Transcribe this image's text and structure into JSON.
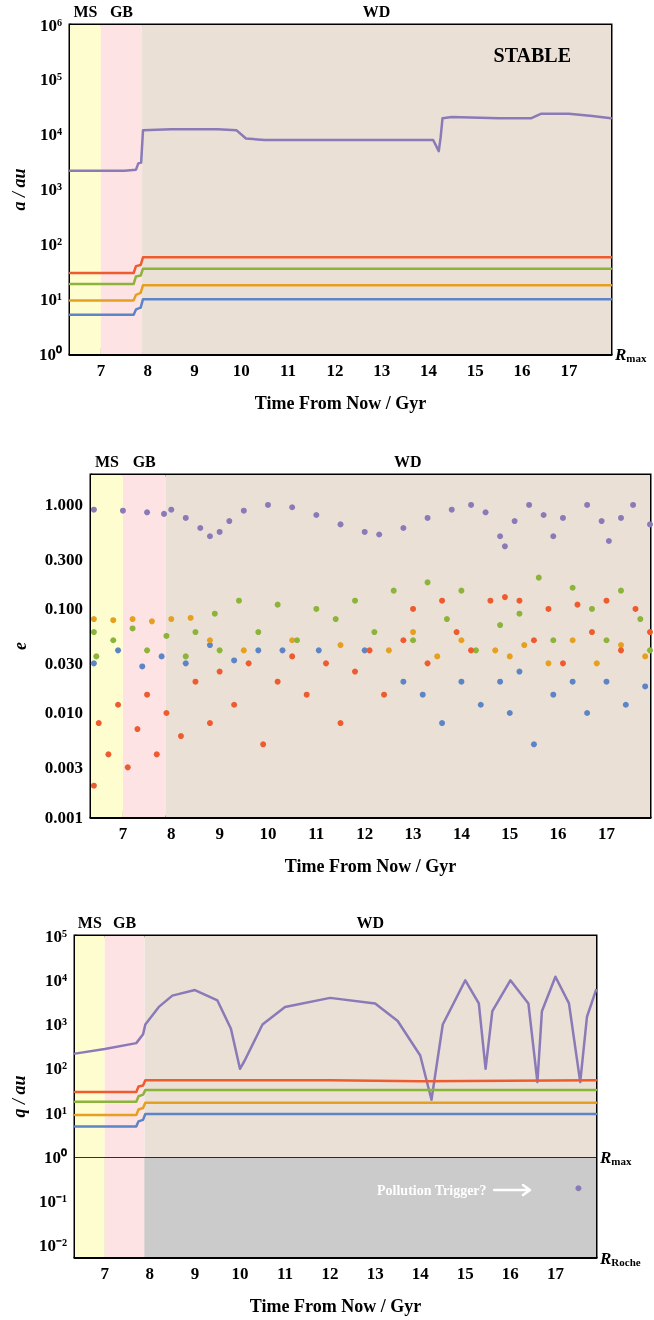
{
  "chart_data": [
    {
      "type": "line",
      "xlabel": "Time From Now / Gyr",
      "ylabel": "a / au",
      "log": "y",
      "xlim": [
        6.34,
        17.9
      ],
      "xticks": [
        7,
        8,
        9,
        10,
        11,
        12,
        13,
        14,
        15,
        16,
        17
      ],
      "ylim": [
        1,
        1000000
      ],
      "yticks": [
        {
          "value": 1,
          "label": "10⁰"
        },
        {
          "value": 10,
          "label": "10¹"
        },
        {
          "value": 100,
          "label": "10²"
        },
        {
          "value": 1000,
          "label": "10³"
        },
        {
          "value": 10000,
          "label": "10⁴"
        },
        {
          "value": 100000,
          "label": "10⁵"
        },
        {
          "value": 1000000,
          "label": "10⁶"
        }
      ],
      "annotations": [
        "STABLE",
        "R$_{max}$"
      ],
      "bands": [
        {
          "axis": "x",
          "from": 6.34,
          "to": 7.0,
          "label": "MS",
          "color": "#fefdd0"
        },
        {
          "axis": "x",
          "from": 7.0,
          "to": 7.88,
          "label": "GB",
          "color": "#fde3e3"
        },
        {
          "axis": "x",
          "from": 7.88,
          "to": 17.9,
          "label": "WD",
          "color": "#eae0d6"
        }
      ],
      "series": [
        {
          "color": "#8a7ab8",
          "x": [
            6.34,
            7.0,
            7.5,
            7.75,
            7.8,
            7.86,
            7.9,
            8.5,
            9.5,
            9.9,
            10.1,
            10.5,
            12,
            13.5,
            14.1,
            14.22,
            14.26,
            14.3,
            14.5,
            15.5,
            16.2,
            16.4,
            17,
            17.5,
            17.9
          ],
          "values": [
            2200,
            2200,
            2200,
            2300,
            3000,
            3100,
            12000,
            12500,
            12500,
            12000,
            8500,
            8000,
            8000,
            8000,
            8000,
            5000,
            9000,
            20000,
            21000,
            20000,
            20000,
            24000,
            24000,
            22000,
            20000
          ]
        },
        {
          "color": "#ee5b2f",
          "x": [
            6.34,
            7.7,
            7.75,
            7.85,
            7.9,
            17.9
          ],
          "values": [
            30,
            30,
            40,
            42,
            58,
            58
          ]
        },
        {
          "color": "#8cb43a",
          "x": [
            6.34,
            7.7,
            7.75,
            7.85,
            7.9,
            17.9
          ],
          "values": [
            19,
            19,
            26,
            27,
            36,
            36
          ]
        },
        {
          "color": "#e5a022",
          "x": [
            6.34,
            7.7,
            7.75,
            7.85,
            7.9,
            17.9
          ],
          "values": [
            9.5,
            9.5,
            12,
            13,
            18,
            18
          ]
        },
        {
          "color": "#5b85c6",
          "x": [
            6.34,
            7.7,
            7.75,
            7.85,
            7.9,
            17.9
          ],
          "values": [
            5.2,
            5.2,
            6.5,
            7,
            10,
            10
          ]
        }
      ]
    },
    {
      "type": "scatter",
      "marker": "circle",
      "xlabel": "Time From Now / Gyr",
      "ylabel": "e",
      "log": "y",
      "xlim": [
        6.34,
        17.9
      ],
      "xticks": [
        7,
        8,
        9,
        10,
        11,
        12,
        13,
        14,
        15,
        16,
        17
      ],
      "ylim": [
        0.001,
        1.94
      ],
      "yticks": [
        {
          "value": 0.001,
          "label": "0.001"
        },
        {
          "value": 0.003,
          "label": "0.003"
        },
        {
          "value": 0.01,
          "label": "0.010"
        },
        {
          "value": 0.03,
          "label": "0.030"
        },
        {
          "value": 0.1,
          "label": "0.100"
        },
        {
          "value": 0.3,
          "label": "0.300"
        },
        {
          "value": 1,
          "label": "1.000"
        }
      ],
      "bands": [
        {
          "axis": "x",
          "from": 6.34,
          "to": 7.0,
          "label": "MS",
          "color": "#fefdd0"
        },
        {
          "axis": "x",
          "from": 7.0,
          "to": 7.88,
          "label": "GB",
          "color": "#fde3e3"
        },
        {
          "axis": "x",
          "from": 7.88,
          "to": 17.9,
          "label": "WD",
          "color": "#eae0d6"
        }
      ],
      "series": [
        {
          "color": "#5b85c6",
          "x": [
            6.4,
            6.9,
            7.4,
            7.8,
            8.3,
            8.8,
            9.3,
            9.8,
            10.3,
            11.05,
            12.0,
            12.8,
            13.2,
            13.6,
            14.0,
            14.4,
            14.8,
            15.0,
            15.2,
            15.5,
            15.9,
            16.3,
            16.6,
            17.0,
            17.4,
            17.8
          ],
          "values": [
            0.03,
            0.04,
            0.028,
            0.035,
            0.03,
            0.045,
            0.032,
            0.04,
            0.04,
            0.04,
            0.04,
            0.02,
            0.015,
            0.008,
            0.02,
            0.012,
            0.02,
            0.01,
            0.025,
            0.005,
            0.015,
            0.02,
            0.01,
            0.02,
            0.012,
            0.018
          ]
        },
        {
          "color": "#e5a022",
          "x": [
            6.4,
            6.8,
            7.2,
            7.6,
            8.0,
            8.4,
            8.8,
            9.5,
            10.5,
            11.5,
            12.5,
            13.0,
            13.5,
            14.0,
            14.7,
            15.0,
            15.3,
            15.8,
            16.3,
            16.8,
            17.3,
            17.8
          ],
          "values": [
            0.08,
            0.078,
            0.08,
            0.076,
            0.08,
            0.082,
            0.05,
            0.04,
            0.05,
            0.045,
            0.04,
            0.06,
            0.035,
            0.05,
            0.04,
            0.035,
            0.045,
            0.03,
            0.05,
            0.03,
            0.045,
            0.035
          ]
        },
        {
          "color": "#8cb43a",
          "x": [
            6.4,
            6.45,
            6.8,
            7.2,
            7.5,
            7.9,
            8.3,
            8.5,
            8.9,
            9.0,
            9.4,
            9.8,
            10.2,
            10.6,
            11.0,
            11.4,
            11.8,
            12.2,
            12.6,
            13.0,
            13.3,
            13.7,
            14.0,
            14.3,
            14.8,
            15.2,
            15.6,
            15.9,
            16.3,
            16.7,
            17.0,
            17.3,
            17.7,
            17.9
          ],
          "values": [
            0.06,
            0.035,
            0.05,
            0.065,
            0.04,
            0.055,
            0.035,
            0.06,
            0.09,
            0.04,
            0.12,
            0.06,
            0.11,
            0.05,
            0.1,
            0.08,
            0.12,
            0.06,
            0.15,
            0.05,
            0.18,
            0.08,
            0.15,
            0.04,
            0.07,
            0.09,
            0.2,
            0.05,
            0.16,
            0.1,
            0.05,
            0.15,
            0.08,
            0.04
          ]
        },
        {
          "color": "#ee5b2f",
          "x": [
            6.4,
            6.5,
            6.7,
            6.9,
            7.1,
            7.3,
            7.5,
            7.7,
            7.9,
            8.2,
            8.5,
            8.8,
            9.0,
            9.3,
            9.6,
            9.9,
            10.2,
            10.5,
            10.8,
            11.2,
            11.5,
            11.8,
            12.1,
            12.4,
            12.8,
            13.0,
            13.3,
            13.6,
            13.9,
            14.2,
            14.6,
            14.9,
            15.2,
            15.5,
            15.8,
            16.1,
            16.4,
            16.7,
            17.0,
            17.3,
            17.6,
            17.9
          ],
          "values": [
            0.002,
            0.008,
            0.004,
            0.012,
            0.003,
            0.007,
            0.015,
            0.004,
            0.01,
            0.006,
            0.02,
            0.008,
            0.025,
            0.012,
            0.03,
            0.005,
            0.02,
            0.035,
            0.015,
            0.03,
            0.008,
            0.025,
            0.04,
            0.015,
            0.05,
            0.1,
            0.03,
            0.12,
            0.06,
            0.04,
            0.12,
            0.13,
            0.12,
            0.05,
            0.1,
            0.03,
            0.11,
            0.06,
            0.12,
            0.04,
            0.1,
            0.06
          ]
        },
        {
          "color": "#8a7ab8",
          "x": [
            6.4,
            7.0,
            7.5,
            7.85,
            8.0,
            8.3,
            8.6,
            8.8,
            9.0,
            9.2,
            9.5,
            10.0,
            10.5,
            11.0,
            11.5,
            12.0,
            12.3,
            12.8,
            13.3,
            13.8,
            14.2,
            14.5,
            14.8,
            14.9,
            15.1,
            15.4,
            15.7,
            15.9,
            16.1,
            16.6,
            16.9,
            17.05,
            17.3,
            17.55,
            17.9
          ],
          "values": [
            0.9,
            0.88,
            0.85,
            0.82,
            0.9,
            0.75,
            0.6,
            0.5,
            0.55,
            0.7,
            0.88,
            1.0,
            0.95,
            0.8,
            0.65,
            0.55,
            0.52,
            0.6,
            0.75,
            0.9,
            1.0,
            0.85,
            0.5,
            0.4,
            0.7,
            1.0,
            0.8,
            0.5,
            0.75,
            1.0,
            0.7,
            0.45,
            0.75,
            1.0,
            0.65
          ]
        }
      ]
    },
    {
      "type": "line",
      "xlabel": "Time From Now / Gyr",
      "ylabel": "q / au",
      "log": "y",
      "xlim": [
        6.34,
        17.9
      ],
      "xticks": [
        7,
        8,
        9,
        10,
        11,
        12,
        13,
        14,
        15,
        16,
        17
      ],
      "ylim": [
        0.0056,
        100000
      ],
      "yticks": [
        {
          "value": 0.01,
          "label": "10⁻²"
        },
        {
          "value": 0.1,
          "label": "10⁻¹"
        },
        {
          "value": 1,
          "label": "10⁰"
        },
        {
          "value": 10,
          "label": "10¹"
        },
        {
          "value": 100,
          "label": "10²"
        },
        {
          "value": 1000,
          "label": "10³"
        },
        {
          "value": 10000,
          "label": "10⁴"
        },
        {
          "value": 100000,
          "label": "10⁵"
        }
      ],
      "annotations": [
        "Pollution Trigger?",
        "R$_{Roche}$"
      ],
      "bands": [
        {
          "axis": "x",
          "from": 7.88,
          "to": 17.9,
          "label": "WD",
          "color": "#eae0d6"
        },
        {
          "axis": "y",
          "from": 0.0056,
          "to": 1,
          "color": "#cbcbcb"
        },
        {
          "axis": "x",
          "from": 6.34,
          "to": 7.0,
          "label": "MS",
          "color": "#fefdd0"
        },
        {
          "axis": "x",
          "from": 7.0,
          "to": 7.88,
          "label": "GB",
          "color": "#fde3e3"
        }
      ],
      "ref_lines": [
        {
          "axis": "y",
          "value": 1,
          "label": "R$_{max}$"
        }
      ],
      "series": [
        {
          "color": "#8a7ab8",
          "x": [
            6.34,
            7.0,
            7.7,
            7.85,
            7.9,
            8.2,
            8.5,
            9.0,
            9.5,
            9.8,
            10.0,
            10.1,
            10.5,
            11,
            12,
            13,
            13.5,
            14.0,
            14.25,
            14.5,
            15,
            15.3,
            15.45,
            15.6,
            16,
            16.4,
            16.6,
            16.7,
            17.0,
            17.3,
            17.55,
            17.7,
            17.9
          ],
          "values": [
            220,
            280,
            380,
            600,
            1000,
            2500,
            4500,
            6000,
            3500,
            800,
            100,
            150,
            1000,
            2500,
            4000,
            3000,
            1200,
            200,
            20,
            1000,
            10000,
            3000,
            100,
            2000,
            10000,
            3000,
            50,
            2000,
            12000,
            3000,
            50,
            1500,
            6000
          ]
        },
        {
          "color": "#ee5b2f",
          "x": [
            6.34,
            7.7,
            7.75,
            7.85,
            7.9,
            12,
            14,
            17.9
          ],
          "values": [
            30,
            30,
            40,
            42,
            55,
            55,
            52,
            55
          ]
        },
        {
          "color": "#8cb43a",
          "x": [
            6.34,
            7.7,
            7.75,
            7.85,
            7.9,
            12,
            14,
            17.9
          ],
          "values": [
            18,
            18,
            24,
            26,
            33,
            33,
            33,
            33
          ]
        },
        {
          "color": "#e5a022",
          "x": [
            6.34,
            7.7,
            7.75,
            7.85,
            7.9,
            12,
            14,
            17.9
          ],
          "values": [
            9,
            9,
            12,
            13,
            17,
            17,
            17,
            17
          ]
        },
        {
          "color": "#5b85c6",
          "x": [
            6.34,
            7.7,
            7.75,
            7.85,
            7.9,
            12,
            14,
            17.9
          ],
          "values": [
            5,
            5,
            6.5,
            7,
            9.5,
            9.5,
            9.5,
            9.5
          ]
        },
        {
          "type": "scatter",
          "marker": "circle",
          "color": "#8a7ab8",
          "x": [
            17.51
          ],
          "values": [
            0.2
          ]
        }
      ]
    }
  ]
}
